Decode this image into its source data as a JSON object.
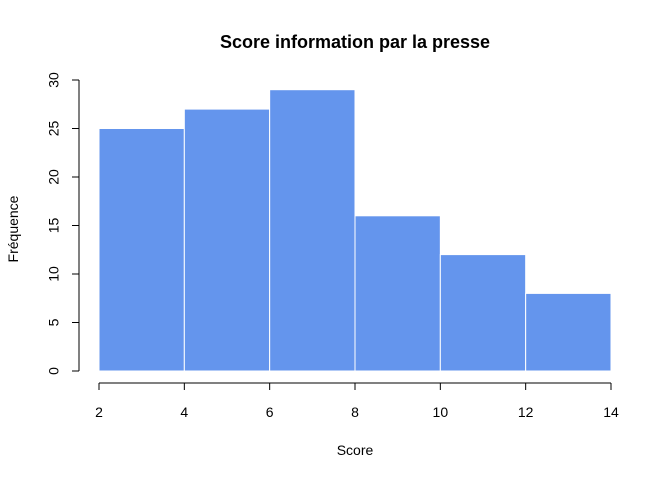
{
  "chart_data": {
    "type": "bar",
    "title": "Score information par la presse",
    "xlabel": "Score",
    "ylabel": "Fréquence",
    "bins": [
      [
        2,
        4
      ],
      [
        4,
        6
      ],
      [
        6,
        8
      ],
      [
        8,
        10
      ],
      [
        10,
        12
      ],
      [
        12,
        14
      ]
    ],
    "values": [
      25,
      27,
      29,
      16,
      12,
      8
    ],
    "xlim": [
      2,
      14
    ],
    "ylim": [
      0,
      30
    ],
    "xticks": [
      2,
      4,
      6,
      8,
      10,
      12,
      14
    ],
    "yticks": [
      0,
      5,
      10,
      15,
      20,
      25,
      30
    ],
    "bar_color": "#6495ED",
    "bar_border_color": "#ffffff",
    "grid": false
  }
}
